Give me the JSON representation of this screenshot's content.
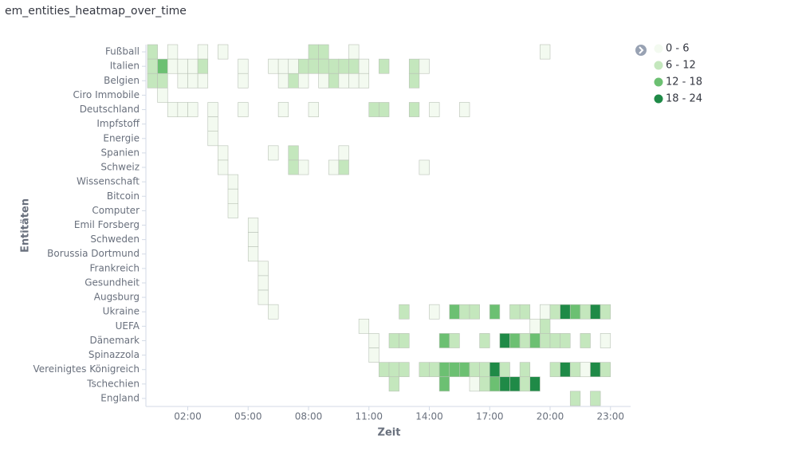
{
  "chart_data": {
    "type": "heatmap",
    "title": "em_entities_heatmap_over_time",
    "x_label": "Zeit",
    "y_label": "Entitäten",
    "xlim": [
      0,
      24
    ],
    "xticks": [
      {
        "value": 2,
        "label": "02:00"
      },
      {
        "value": 5,
        "label": "05:00"
      },
      {
        "value": 8,
        "label": "08:00"
      },
      {
        "value": 11,
        "label": "11:00"
      },
      {
        "value": 14,
        "label": "14:00"
      },
      {
        "value": 17,
        "label": "17:00"
      },
      {
        "value": 20,
        "label": "20:00"
      },
      {
        "value": 23,
        "label": "23:00"
      }
    ],
    "legend": {
      "position": "top-right",
      "bins": [
        {
          "label": "0 - 6",
          "range": [
            0,
            6
          ],
          "color": "#f3faf0"
        },
        {
          "label": "6 - 12",
          "range": [
            6,
            12
          ],
          "color": "#c4e7bd"
        },
        {
          "label": "12 - 18",
          "range": [
            12,
            18
          ],
          "color": "#6cc072"
        },
        {
          "label": "18 - 24",
          "range": [
            18,
            24
          ],
          "color": "#1f8a47"
        }
      ]
    },
    "series": [
      {
        "name": "Fußball",
        "x": [
          0,
          1,
          2.5,
          3.5,
          8,
          8.5,
          10,
          19.5
        ],
        "values": [
          9,
          3,
          3,
          3,
          9,
          9,
          3,
          3
        ]
      },
      {
        "name": "Italien",
        "x": [
          0,
          0.5,
          1,
          1.5,
          2,
          2.5,
          4.5,
          6,
          6.5,
          7,
          7.5,
          8,
          8.5,
          9,
          9.5,
          10,
          10.5,
          11.5,
          13,
          13.5
        ],
        "values": [
          9,
          15,
          3,
          3,
          3,
          9,
          3,
          3,
          3,
          3,
          9,
          9,
          9,
          9,
          9,
          9,
          3,
          9,
          9,
          3
        ]
      },
      {
        "name": "Belgien",
        "x": [
          0,
          0.5,
          1.5,
          2,
          2.5,
          4.5,
          6.5,
          7,
          7.5,
          8.5,
          9,
          9.5,
          10,
          10.5,
          13
        ],
        "values": [
          9,
          9,
          3,
          3,
          3,
          3,
          3,
          9,
          3,
          3,
          9,
          3,
          3,
          3,
          9
        ]
      },
      {
        "name": "Ciro Immobile",
        "x": [
          0.5
        ],
        "values": [
          3
        ]
      },
      {
        "name": "Deutschland",
        "x": [
          1,
          1.5,
          2,
          3,
          4.5,
          6.5,
          8,
          11,
          11.5,
          13,
          14,
          15.5
        ],
        "values": [
          3,
          3,
          3,
          3,
          3,
          3,
          3,
          9,
          9,
          9,
          3,
          3
        ]
      },
      {
        "name": "Impfstoff",
        "x": [
          3
        ],
        "values": [
          3
        ]
      },
      {
        "name": "Energie",
        "x": [
          3
        ],
        "values": [
          3
        ]
      },
      {
        "name": "Spanien",
        "x": [
          3.5,
          6,
          7,
          9.5
        ],
        "values": [
          3,
          3,
          9,
          3
        ]
      },
      {
        "name": "Schweiz",
        "x": [
          3.5,
          7,
          7.5,
          9,
          9.5,
          13.5
        ],
        "values": [
          3,
          9,
          3,
          3,
          9,
          3
        ]
      },
      {
        "name": "Wissenschaft",
        "x": [
          4
        ],
        "values": [
          3
        ]
      },
      {
        "name": "Bitcoin",
        "x": [
          4
        ],
        "values": [
          3
        ]
      },
      {
        "name": "Computer",
        "x": [
          4
        ],
        "values": [
          3
        ]
      },
      {
        "name": "Emil Forsberg",
        "x": [
          5
        ],
        "values": [
          3
        ]
      },
      {
        "name": "Schweden",
        "x": [
          5
        ],
        "values": [
          3
        ]
      },
      {
        "name": "Borussia Dortmund",
        "x": [
          5
        ],
        "values": [
          3
        ]
      },
      {
        "name": "Frankreich",
        "x": [
          5.5
        ],
        "values": [
          3
        ]
      },
      {
        "name": "Gesundheit",
        "x": [
          5.5
        ],
        "values": [
          3
        ]
      },
      {
        "name": "Augsburg",
        "x": [
          5.5
        ],
        "values": [
          3
        ]
      },
      {
        "name": "Ukraine",
        "x": [
          6,
          12.5,
          14,
          15,
          15.5,
          16,
          17,
          18,
          18.5,
          19.5,
          20,
          20.5,
          21,
          21.5,
          22,
          22.5
        ],
        "values": [
          3,
          9,
          3,
          15,
          9,
          9,
          15,
          9,
          9,
          3,
          9,
          21,
          15,
          9,
          21,
          9
        ]
      },
      {
        "name": "UEFA",
        "x": [
          10.5,
          19,
          19.5
        ],
        "values": [
          3,
          3,
          9
        ]
      },
      {
        "name": "Dänemark",
        "x": [
          11,
          12,
          12.5,
          14.5,
          15,
          16.5,
          17.5,
          18,
          18.5,
          19,
          19.5,
          20,
          20.5,
          21.5,
          22.5
        ],
        "values": [
          3,
          9,
          9,
          15,
          9,
          9,
          21,
          15,
          9,
          15,
          9,
          9,
          9,
          9,
          3
        ]
      },
      {
        "name": "Spinazzola",
        "x": [
          11
        ],
        "values": [
          3
        ]
      },
      {
        "name": "Vereinigtes Königreich",
        "x": [
          11.5,
          12,
          12.5,
          13.5,
          14,
          14.5,
          15,
          15.5,
          16,
          16.5,
          17,
          17.5,
          18.5,
          20,
          20.5,
          21,
          21.5,
          22,
          22.5
        ],
        "values": [
          9,
          9,
          9,
          9,
          9,
          15,
          15,
          15,
          9,
          9,
          21,
          9,
          9,
          9,
          21,
          9,
          3,
          21,
          9
        ]
      },
      {
        "name": "Tschechien",
        "x": [
          12,
          14.5,
          16,
          16.5,
          17,
          17.5,
          18,
          18.5,
          19
        ],
        "values": [
          9,
          15,
          3,
          9,
          15,
          21,
          21,
          9,
          21
        ]
      },
      {
        "name": "England",
        "x": [
          21,
          22
        ],
        "values": [
          9,
          9
        ]
      }
    ]
  }
}
